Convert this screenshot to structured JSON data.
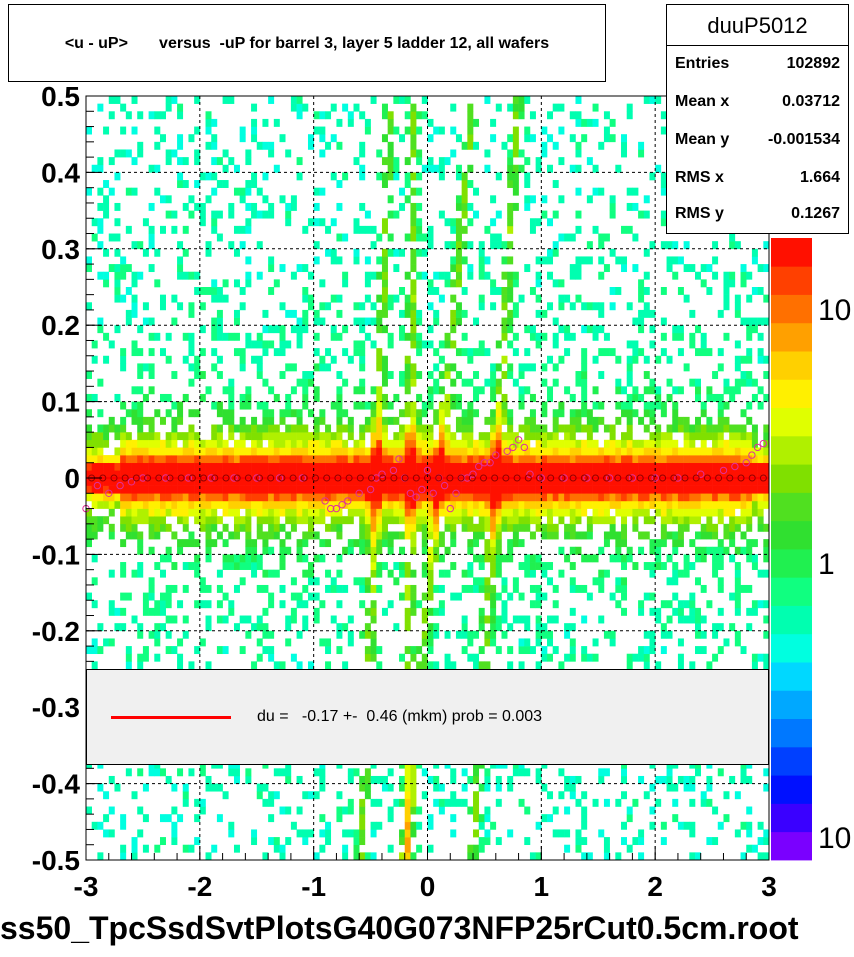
{
  "chart_data": {
    "type": "heatmap",
    "title": "<u - uP>       versus  -uP for barrel 3, layer 5 ladder 12, all wafers",
    "xlabel": "",
    "ylabel": "",
    "xlim": [
      -3,
      3
    ],
    "ylim": [
      -0.5,
      0.5
    ],
    "x_ticks": [
      "-3",
      "-2",
      "-1",
      "0",
      "1",
      "2",
      "3"
    ],
    "y_ticks": [
      "-0.5",
      "-0.4",
      "-0.3",
      "-0.2",
      "-0.1",
      "0",
      "0.1",
      "0.2",
      "0.3",
      "0.4",
      "0.5"
    ],
    "color_scale": {
      "log": true,
      "tick_labels": [
        "10",
        "1",
        "10"
      ],
      "palette": [
        "#7a00ff",
        "#3a00ff",
        "#0010ff",
        "#0040ff",
        "#0078ff",
        "#00a8ff",
        "#00d8ff",
        "#00ffe0",
        "#00ffb0",
        "#10ff80",
        "#20f050",
        "#30e030",
        "#50e020",
        "#80e000",
        "#b0f000",
        "#e0ff00",
        "#fff000",
        "#ffd000",
        "#ffa000",
        "#ff7000",
        "#ff4000",
        "#ff1000"
      ]
    },
    "profile_points": {
      "x": [
        -3.0,
        -2.9,
        -2.8,
        -2.7,
        -2.6,
        -2.5,
        -2.3,
        -2.1,
        -1.9,
        -1.7,
        -1.5,
        -1.3,
        -1.1,
        -0.9,
        -0.85,
        -0.8,
        -0.75,
        -0.7,
        -0.6,
        -0.5,
        -0.45,
        -0.4,
        -0.3,
        -0.25,
        -0.2,
        -0.15,
        -0.1,
        -0.05,
        0.0,
        0.05,
        0.1,
        0.15,
        0.2,
        0.25,
        0.3,
        0.35,
        0.4,
        0.45,
        0.5,
        0.55,
        0.6,
        0.7,
        0.75,
        0.8,
        0.85,
        0.9,
        1.0,
        1.2,
        1.4,
        1.6,
        1.8,
        2.0,
        2.2,
        2.4,
        2.6,
        2.7,
        2.8,
        2.85,
        2.9,
        2.95
      ],
      "y": [
        -0.04,
        -0.01,
        -0.02,
        -0.01,
        -0.005,
        0.0,
        0.0,
        0.0,
        0.0,
        0.0,
        0.0,
        0.0,
        0.0,
        -0.03,
        -0.04,
        -0.04,
        -0.035,
        -0.03,
        -0.02,
        -0.015,
        0.0,
        0.005,
        0.01,
        0.025,
        0.0,
        -0.02,
        -0.025,
        -0.015,
        0.01,
        -0.02,
        0.0,
        -0.01,
        -0.04,
        -0.02,
        0.0,
        0.0,
        0.005,
        0.015,
        0.02,
        0.02,
        0.03,
        0.035,
        0.04,
        0.05,
        0.04,
        0.005,
        0.0,
        0.0,
        0.0,
        0.0,
        0.0,
        0.0,
        0.0,
        0.005,
        0.01,
        0.015,
        0.02,
        0.03,
        0.04,
        0.045
      ]
    }
  },
  "stats": {
    "name": "duuP5012",
    "rows": [
      {
        "label": "Entries",
        "value": "102892"
      },
      {
        "label": "Mean x",
        "value": "0.03712"
      },
      {
        "label": "Mean y",
        "value": "-0.001534"
      },
      {
        "label": "RMS x",
        "value": "1.664"
      },
      {
        "label": "RMS y",
        "value": "0.1267"
      }
    ]
  },
  "legend": {
    "line_color": "#ff0000",
    "text": "du =   -0.17 +-  0.46 (mkm) prob = 0.003"
  },
  "footer": "ss50_TpcSsdSvtPlotsG40G073NFP25rCut0.5cm.root"
}
